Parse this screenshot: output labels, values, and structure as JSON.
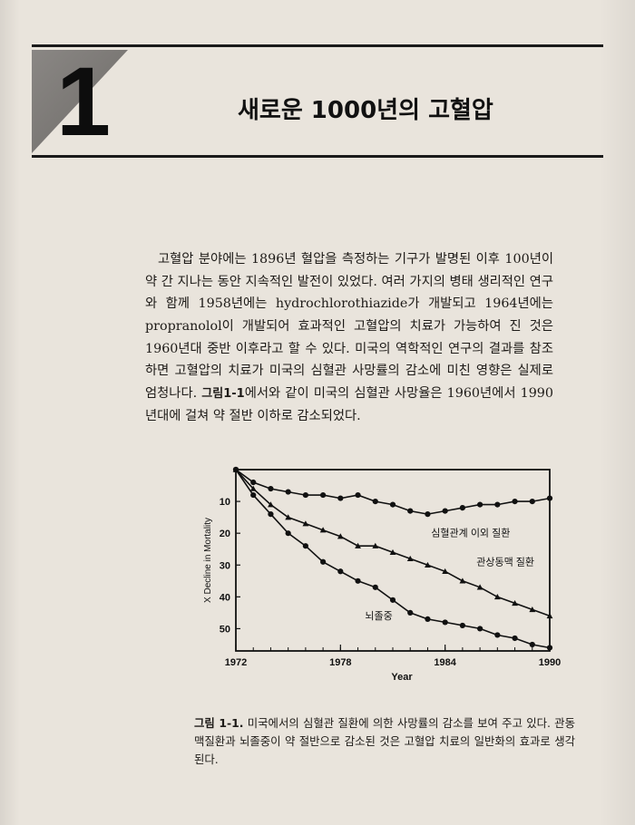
{
  "chapter": {
    "number": "1",
    "title": "새로운 1000년의 고혈압"
  },
  "body": {
    "before_ref": "고혈압 분야에는 1896년 혈압을 측정하는 기구가 발명된 이후 100년이 약 간 지나는 동안 지속적인 발전이 있었다. 여러 가지의 병태 생리적인 연구와 함께 1958년에는 hydrochlorothiazide가 개발되고 1964년에는 propranolol이 개발되어 효과적인 고혈압의 치료가 가능하여 진 것은 1960년대 중반 이후라고 할 수 있다. 미국의 역학적인 연구의 결과를 참조하면 고혈압의 치료가 미국의 심혈관 사망률의 감소에 미친 영향은 실제로 엄청나다.",
    "figure_ref": "그림1-1",
    "after_ref": "에서와 같이 미국의 심혈관 사망율은 1960년에서 1990년대에 걸쳐 약 절반 이하로 감소되었다."
  },
  "caption": {
    "label": "그림 1-1.",
    "text": "미국에서의 심혈관 질환에 의한 사망률의 감소를 보여 주고 있다. 관동맥질환과 뇌졸중이 약 절반으로 감소된 것은 고혈압 치료의 일반화의 효과로 생각된다."
  },
  "chart_data": {
    "type": "line",
    "title": "",
    "xlabel": "Year",
    "ylabel": "X Decline in Mortality",
    "xlim": [
      1972,
      1990
    ],
    "ylim": [
      0,
      57
    ],
    "y_inverted": true,
    "x_ticks": [
      "1972",
      "1978",
      "1984",
      "1990"
    ],
    "y_ticks": [
      "10",
      "20",
      "30",
      "40",
      "50"
    ],
    "grid": false,
    "legend": "direct labels on lines",
    "series": [
      {
        "name": "심혈관계 이외 질환",
        "marker": "circle",
        "x": [
          1972,
          1973,
          1974,
          1975,
          1976,
          1977,
          1978,
          1979,
          1980,
          1981,
          1982,
          1983,
          1984,
          1985,
          1986,
          1987,
          1988,
          1989,
          1990
        ],
        "y": [
          0,
          4,
          6,
          7,
          8,
          8,
          9,
          8,
          10,
          11,
          13,
          14,
          13,
          12,
          11,
          11,
          10,
          10,
          9
        ]
      },
      {
        "name": "관상동맥 질환",
        "marker": "triangle",
        "x": [
          1972,
          1973,
          1974,
          1975,
          1976,
          1977,
          1978,
          1979,
          1980,
          1981,
          1982,
          1983,
          1984,
          1985,
          1986,
          1987,
          1988,
          1989,
          1990
        ],
        "y": [
          0,
          6,
          11,
          15,
          17,
          19,
          21,
          24,
          24,
          26,
          28,
          30,
          32,
          35,
          37,
          40,
          42,
          44,
          46
        ]
      },
      {
        "name": "뇌졸중",
        "marker": "circle",
        "x": [
          1972,
          1973,
          1974,
          1975,
          1976,
          1977,
          1978,
          1979,
          1980,
          1981,
          1982,
          1983,
          1984,
          1985,
          1986,
          1987,
          1988,
          1989,
          1990
        ],
        "y": [
          0,
          8,
          14,
          20,
          24,
          29,
          32,
          35,
          37,
          41,
          45,
          47,
          48,
          49,
          50,
          52,
          53,
          55,
          56
        ]
      }
    ]
  }
}
